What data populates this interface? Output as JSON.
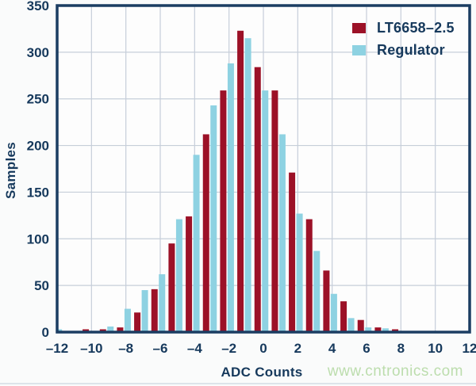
{
  "chart_data": {
    "type": "bar",
    "title": "",
    "xlabel": "ADC Counts",
    "ylabel": "Samples",
    "categories": [
      -12,
      -11,
      -10,
      -9,
      -8,
      -7,
      -6,
      -5,
      -4,
      -3,
      -2,
      -1,
      0,
      1,
      2,
      3,
      4,
      5,
      6,
      7,
      8
    ],
    "series": [
      {
        "name": "LT6658–2.5",
        "color": "#9c1127",
        "values": [
          0,
          0,
          3,
          3,
          5,
          21,
          46,
          95,
          124,
          212,
          259,
          323,
          284,
          259,
          171,
          121,
          66,
          33,
          13,
          5,
          3
        ]
      },
      {
        "name": "Regulator",
        "color": "#8ed2e2",
        "values": [
          3,
          0,
          0,
          6,
          25,
          45,
          62,
          121,
          190,
          243,
          288,
          315,
          259,
          212,
          127,
          87,
          41,
          15,
          5,
          4,
          0
        ]
      }
    ],
    "xlim": [
      -12,
      12
    ],
    "ylim": [
      0,
      350
    ],
    "x_ticks": [
      -12,
      -10,
      -8,
      -6,
      -4,
      -2,
      0,
      2,
      4,
      6,
      8,
      10,
      12
    ],
    "x_tick_labels": [
      "–12",
      "–10",
      "–8",
      "–6",
      "–4",
      "–2",
      "0",
      "2",
      "4",
      "6",
      "8",
      "10",
      "12"
    ],
    "y_ticks": [
      0,
      50,
      100,
      150,
      200,
      250,
      300,
      350
    ],
    "grid": true,
    "legend_position": "top-right"
  },
  "colors": {
    "axis_frame": "#1b3d62",
    "label_text": "#16395c",
    "gridline": "#c6ced9",
    "plot_background": "#fdfdfd"
  },
  "watermark": {
    "text": "www.cntronics.com",
    "color": "#bcddad"
  }
}
